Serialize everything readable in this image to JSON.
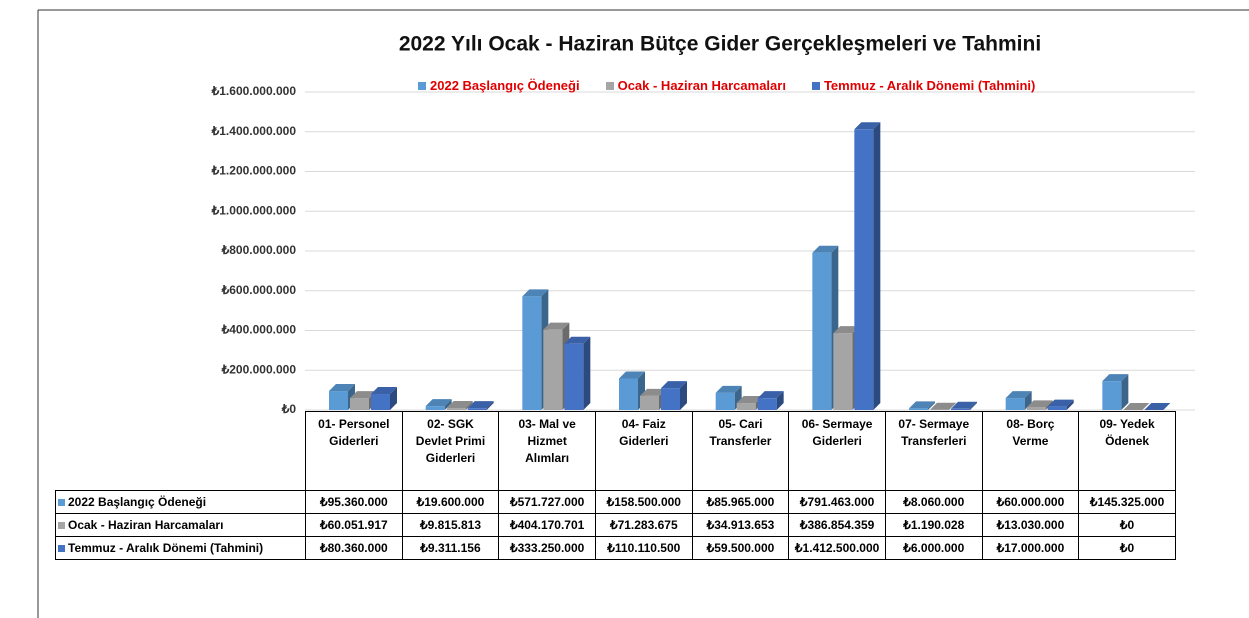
{
  "chart_data": {
    "type": "bar",
    "title": "2022 Yılı Ocak - Haziran Bütçe Gider Gerçekleşmeleri ve Tahmini",
    "categories": [
      "01- Personel Giderleri",
      "02- SGK Devlet Primi Giderleri",
      "03- Mal ve Hizmet Alımları",
      "04- Faiz Giderleri",
      "05- Cari Transferler",
      "06- Sermaye Giderleri",
      "07- Sermaye Transferleri",
      "08- Borç Verme",
      "09- Yedek Ödenek"
    ],
    "series": [
      {
        "name": "2022 Başlangıç Ödeneği",
        "color": "#5b9bd5",
        "values": [
          95360000,
          19600000,
          571727000,
          158500000,
          85965000,
          791463000,
          8060000,
          60000000,
          145325000
        ],
        "value_labels": [
          "₺95.360.000",
          "₺19.600.000",
          "₺571.727.000",
          "₺158.500.000",
          "₺85.965.000",
          "₺791.463.000",
          "₺8.060.000",
          "₺60.000.000",
          "₺145.325.000"
        ]
      },
      {
        "name": "Ocak - Haziran Harcamaları",
        "color": "#a5a5a5",
        "values": [
          60051917,
          9815813,
          404170701,
          71283675,
          34913653,
          386854359,
          1190028,
          13030000,
          0
        ],
        "value_labels": [
          "₺60.051.917",
          "₺9.815.813",
          "₺404.170.701",
          "₺71.283.675",
          "₺34.913.653",
          "₺386.854.359",
          "₺1.190.028",
          "₺13.030.000",
          "₺0"
        ]
      },
      {
        "name": "Temmuz - Aralık Dönemi (Tahmini)",
        "color": "#4472c4",
        "values": [
          80360000,
          9311156,
          333250000,
          110110500,
          59500000,
          1412500000,
          6000000,
          17000000,
          0
        ],
        "value_labels": [
          "₺80.360.000",
          "₺9.311.156",
          "₺333.250.000",
          "₺110.110.500",
          "₺59.500.000",
          "₺1.412.500.000",
          "₺6.000.000",
          "₺17.000.000",
          "₺0"
        ]
      }
    ],
    "ylim": [
      0,
      1600000000
    ],
    "yticks": [
      {
        "value": 0,
        "label": "₺0"
      },
      {
        "value": 200000000,
        "label": "₺200.000.000"
      },
      {
        "value": 400000000,
        "label": "₺400.000.000"
      },
      {
        "value": 600000000,
        "label": "₺600.000.000"
      },
      {
        "value": 800000000,
        "label": "₺800.000.000"
      },
      {
        "value": 1000000000,
        "label": "₺1.000.000.000"
      },
      {
        "value": 1200000000,
        "label": "₺1.200.000.000"
      },
      {
        "value": 1400000000,
        "label": "₺1.400.000.000"
      },
      {
        "value": 1600000000,
        "label": "₺1.600.000.000"
      }
    ],
    "grid": true,
    "legend": "top"
  }
}
